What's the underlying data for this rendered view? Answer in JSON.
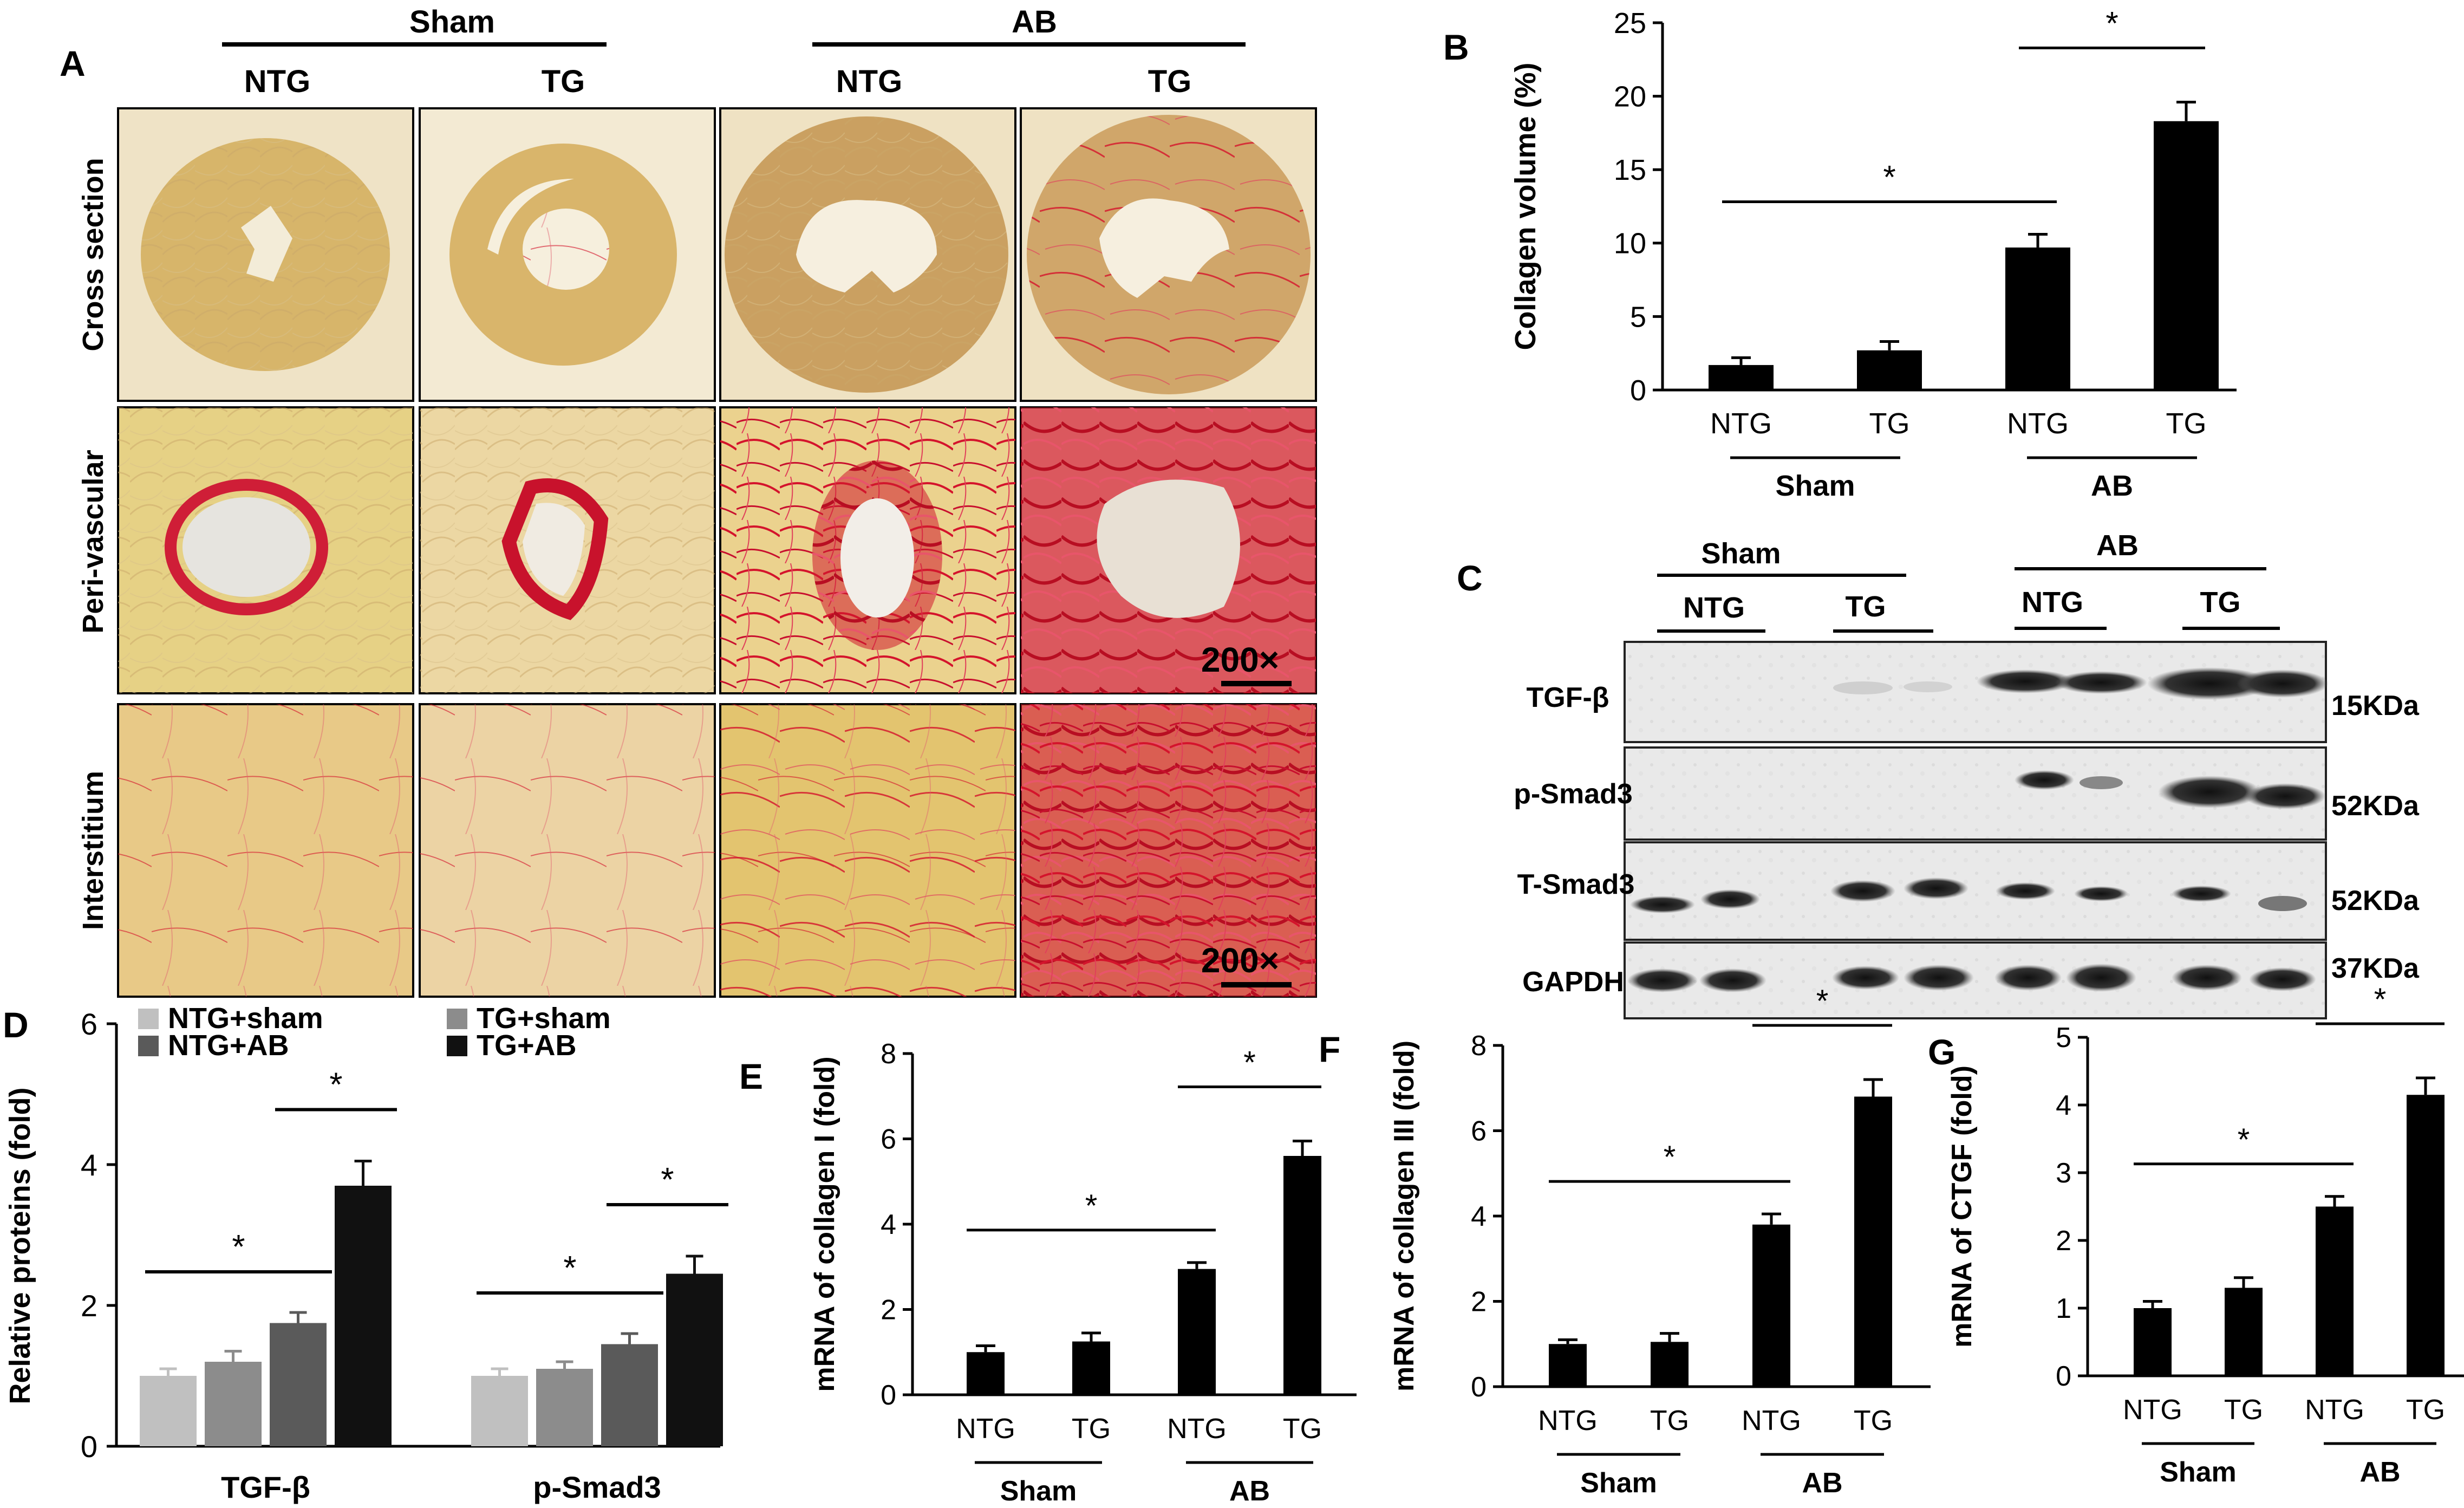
{
  "panel_letters": {
    "A": "A",
    "B": "B",
    "C": "C",
    "D": "D",
    "E": "E",
    "F": "F",
    "G": "G"
  },
  "panel_a": {
    "groups": [
      "Sham",
      "AB"
    ],
    "columns": [
      "NTG",
      "TG",
      "NTG",
      "TG"
    ],
    "rows": [
      "Cross section",
      "Peri-vascular",
      "Interstitium"
    ],
    "scale_label": "200×"
  },
  "panel_c": {
    "groups": [
      "Sham",
      "AB"
    ],
    "lanes": [
      "NTG",
      "TG",
      "NTG",
      "TG"
    ],
    "blots": [
      {
        "name": "TGF-β",
        "size": "15KDa"
      },
      {
        "name": "p-Smad3",
        "size": "52KDa"
      },
      {
        "name": "T-Smad3",
        "size": "52KDa"
      },
      {
        "name": "GAPDH",
        "size": "37KDa"
      }
    ]
  },
  "colors": {
    "bar": "#000000",
    "ntg_sham": "#c0c0c0",
    "tg_sham": "#8c8c8c",
    "ntg_ab": "#5a5a5a",
    "tg_ab": "#111111"
  },
  "chart_data": [
    {
      "panel": "B",
      "type": "bar",
      "categories": [
        "NTG",
        "TG",
        "NTG",
        "TG"
      ],
      "group_labels": [
        "Sham",
        "AB"
      ],
      "values": [
        1.7,
        2.7,
        9.7,
        18.3
      ],
      "errors": [
        0.5,
        0.6,
        0.9,
        1.3
      ],
      "ylabel": "Collagen volume (%)",
      "ylim": [
        0,
        25
      ],
      "yticks": [
        0,
        5,
        10,
        15,
        20,
        25
      ],
      "significance": [
        {
          "from": 0,
          "to": 2,
          "label": "*"
        },
        {
          "from": 2,
          "to": 3,
          "label": "*"
        }
      ]
    },
    {
      "panel": "D",
      "type": "bar",
      "categories": [
        "TGF-β",
        "p-Smad3"
      ],
      "series": [
        {
          "name": "NTG+sham",
          "values": [
            1.0,
            1.0
          ],
          "errors": [
            0.1,
            0.1
          ]
        },
        {
          "name": "TG+sham",
          "values": [
            1.2,
            1.1
          ],
          "errors": [
            0.15,
            0.1
          ]
        },
        {
          "name": "NTG+AB",
          "values": [
            1.75,
            1.45
          ],
          "errors": [
            0.15,
            0.15
          ]
        },
        {
          "name": "TG+AB",
          "values": [
            3.7,
            2.45
          ],
          "errors": [
            0.35,
            0.25
          ]
        }
      ],
      "ylabel": "Relative proteins (fold)",
      "ylim": [
        0,
        6
      ],
      "yticks": [
        0,
        2,
        4,
        6
      ],
      "significance": [
        {
          "category": 0,
          "from": 0,
          "to": 2,
          "label": "*"
        },
        {
          "category": 0,
          "from": 2,
          "to": 3,
          "label": "*"
        },
        {
          "category": 1,
          "from": 0,
          "to": 2,
          "label": "*"
        },
        {
          "category": 1,
          "from": 2,
          "to": 3,
          "label": "*"
        }
      ]
    },
    {
      "panel": "E",
      "type": "bar",
      "categories": [
        "NTG",
        "TG",
        "NTG",
        "TG"
      ],
      "group_labels": [
        "Sham",
        "AB"
      ],
      "values": [
        1.0,
        1.25,
        2.95,
        5.6
      ],
      "errors": [
        0.15,
        0.2,
        0.15,
        0.35
      ],
      "ylabel": "mRNA of collagen I (fold)",
      "ylim": [
        0,
        8
      ],
      "yticks": [
        0,
        2,
        4,
        6,
        8
      ],
      "significance": [
        {
          "from": 0,
          "to": 2,
          "label": "*"
        },
        {
          "from": 2,
          "to": 3,
          "label": "*"
        }
      ]
    },
    {
      "panel": "F",
      "type": "bar",
      "categories": [
        "NTG",
        "TG",
        "NTG",
        "TG"
      ],
      "group_labels": [
        "Sham",
        "AB"
      ],
      "values": [
        1.0,
        1.05,
        3.8,
        6.8
      ],
      "errors": [
        0.1,
        0.2,
        0.25,
        0.4
      ],
      "ylabel": "mRNA of collagen III (fold)",
      "ylim": [
        0,
        8
      ],
      "yticks": [
        0,
        2,
        4,
        6,
        8
      ],
      "significance": [
        {
          "from": 0,
          "to": 2,
          "label": "*"
        },
        {
          "from": 2,
          "to": 3,
          "label": "*"
        }
      ]
    },
    {
      "panel": "G",
      "type": "bar",
      "categories": [
        "NTG",
        "TG",
        "NTG",
        "TG"
      ],
      "group_labels": [
        "Sham",
        "AB"
      ],
      "values": [
        1.0,
        1.3,
        2.5,
        4.15
      ],
      "errors": [
        0.1,
        0.15,
        0.15,
        0.25
      ],
      "ylabel": "mRNA of CTGF (fold)",
      "ylim": [
        0,
        5
      ],
      "yticks": [
        0,
        1,
        2,
        3,
        4,
        5
      ],
      "significance": [
        {
          "from": 0,
          "to": 2,
          "label": "*"
        },
        {
          "from": 2,
          "to": 3,
          "label": "*"
        }
      ]
    }
  ]
}
